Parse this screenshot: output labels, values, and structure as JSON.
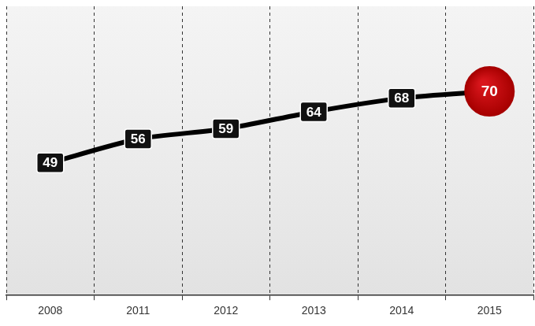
{
  "chart_data": {
    "type": "line",
    "categories": [
      "2008",
      "2011",
      "2012",
      "2013",
      "2014",
      "2015"
    ],
    "values": [
      49,
      56,
      59,
      64,
      68,
      70
    ],
    "color": "#000000",
    "colors": [
      "#111111",
      "#111111",
      "#111111",
      "#111111",
      "#111111",
      "#d9161c"
    ],
    "ylim": [
      10,
      95
    ],
    "grid": true,
    "data_labels": true,
    "tick_labels": "x"
  }
}
